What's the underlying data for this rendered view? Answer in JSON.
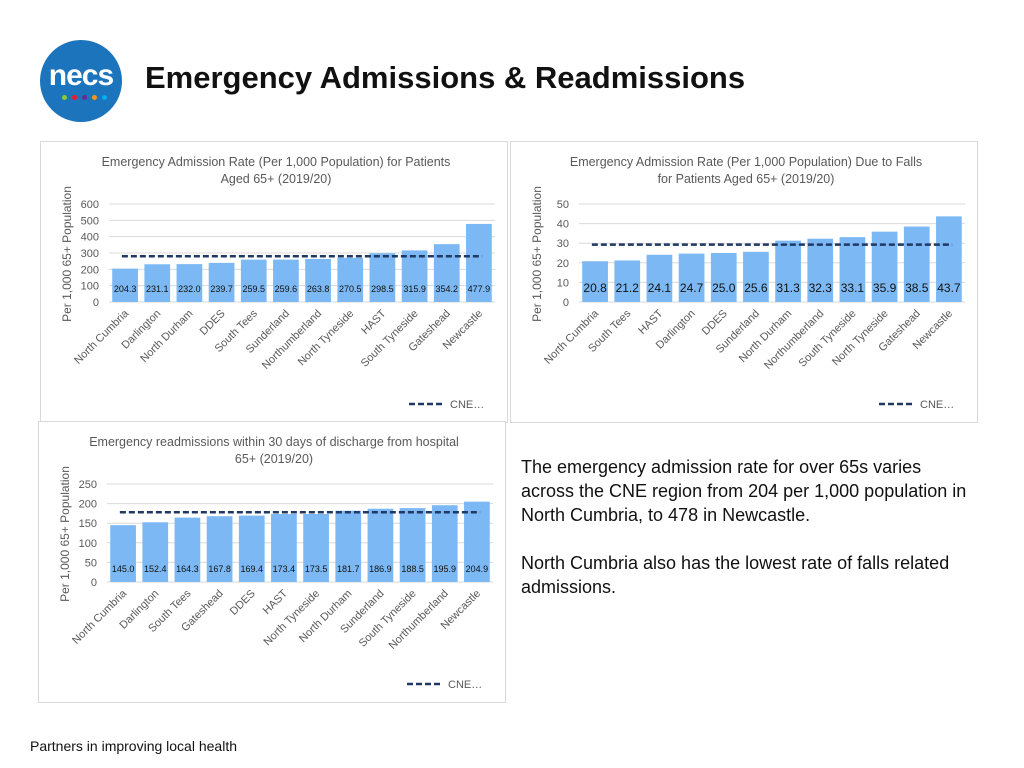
{
  "header": {
    "logo": "necs",
    "title": "Emergency Admissions & Readmissions"
  },
  "chart_data": [
    {
      "type": "bar",
      "title": "Emergency Admission Rate (Per 1,000 Population) for Patients Aged 65+ (2019/20)",
      "ylabel": "Per 1,000 65+ Population",
      "categories": [
        "North Cumbria",
        "Darlington",
        "North Durham",
        "DDES",
        "South Tees",
        "Sunderland",
        "Northumberland",
        "North Tyneside",
        "HAST",
        "South Tyneside",
        "Gateshead",
        "Newcastle"
      ],
      "values": [
        204.3,
        231.1,
        232.0,
        239.7,
        259.5,
        259.6,
        263.8,
        270.5,
        298.5,
        315.9,
        354.2,
        477.9
      ],
      "value_labels": [
        "204.3",
        "231.1",
        "232.0",
        "239.7",
        "259.5",
        "259.6",
        "263.8",
        "270.5",
        "298.5",
        "315.9",
        "354.2",
        "477.9"
      ],
      "color": "#7cb9f4",
      "reference_line": {
        "name": "CNE…",
        "value": 280,
        "color": "#1f3864"
      },
      "ylim": [
        0,
        600
      ],
      "yticks": [
        0,
        100,
        200,
        300,
        400,
        500,
        600
      ],
      "grid": true
    },
    {
      "type": "bar",
      "title": "Emergency Admission Rate (Per 1,000 Population) Due to Falls for Patients Aged 65+ (2019/20)",
      "ylabel": "Per 1,000 65+ Population",
      "categories": [
        "North Cumbria",
        "South Tees",
        "HAST",
        "Darlington",
        "DDES",
        "Sunderland",
        "North Durham",
        "Northumberland",
        "South Tyneside",
        "North Tyneside",
        "Gateshead",
        "Newcastle"
      ],
      "values": [
        20.8,
        21.2,
        24.1,
        24.7,
        25.0,
        25.6,
        31.3,
        32.3,
        33.1,
        35.9,
        38.5,
        43.7
      ],
      "value_labels": [
        "20.8",
        "21.2",
        "24.1",
        "24.7",
        "25.0",
        "25.6",
        "31.3",
        "32.3",
        "33.1",
        "35.9",
        "38.5",
        "43.7"
      ],
      "color": "#7cb9f4",
      "reference_line": {
        "name": "CNE…",
        "value": 29.3,
        "color": "#1f3864"
      },
      "ylim": [
        0,
        50
      ],
      "yticks": [
        0,
        10,
        20,
        30,
        40,
        50
      ],
      "grid": true
    },
    {
      "type": "bar",
      "title": "Emergency readmissions within 30 days of discharge from hospital 65+ (2019/20)",
      "ylabel": "Per 1,000 65+ Population",
      "categories": [
        "North Cumbria",
        "Darlington",
        "South Tees",
        "Gateshead",
        "DDES",
        "HAST",
        "North Tyneside",
        "North Durham",
        "Sunderland",
        "South Tyneside",
        "Northumberland",
        "Newcastle"
      ],
      "values": [
        145.0,
        152.4,
        164.3,
        167.8,
        169.4,
        173.4,
        173.5,
        181.7,
        186.9,
        188.5,
        195.9,
        204.9
      ],
      "value_labels": [
        "145.0",
        "152.4",
        "164.3",
        "167.8",
        "169.4",
        "173.4",
        "173.5",
        "181.7",
        "186.9",
        "188.5",
        "195.9",
        "204.9"
      ],
      "color": "#7cb9f4",
      "reference_line": {
        "name": "CNE…",
        "value": 178,
        "color": "#1f3864"
      },
      "ylim": [
        0,
        250
      ],
      "yticks": [
        0,
        50,
        100,
        150,
        200,
        250
      ],
      "grid": true
    }
  ],
  "notes": [
    "The emergency admission rate for over 65s varies across the CNE region from 204 per 1,000 population in North Cumbria, to 478 in Newcastle.",
    "North Cumbria also has the lowest rate of falls related admissions."
  ],
  "footer": "Partners in improving local health"
}
